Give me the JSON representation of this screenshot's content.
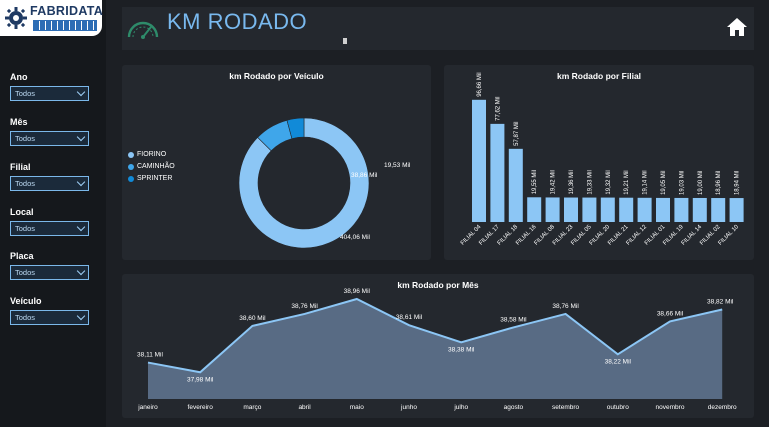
{
  "logo": {
    "text": "FABRIDATA"
  },
  "header": {
    "title": "KM RODADO"
  },
  "filters": [
    {
      "label": "Ano",
      "value": "Todos"
    },
    {
      "label": "Mês",
      "value": "Todos"
    },
    {
      "label": "Filial",
      "value": "Todos"
    },
    {
      "label": "Local",
      "value": "Todos"
    },
    {
      "label": "Placa",
      "value": "Todos"
    },
    {
      "label": "Veículo",
      "value": "Todos"
    }
  ],
  "colors": {
    "accent": "#79b9ef",
    "bar": "#8cc6f5",
    "area_fill": "#586b84",
    "area_line": "#8cc6f5"
  },
  "icons": {
    "gauge": "speedometer-icon",
    "home": "home-icon"
  },
  "chart_data": [
    {
      "type": "pie",
      "title": "km Rodado por Veículo",
      "slices": [
        {
          "name": "FIORINO",
          "value": 404.06,
          "label": "404,06 Mil",
          "color": "#8cc6f5"
        },
        {
          "name": "CAMINHÃO",
          "value": 38.86,
          "label": "38,86 Mil",
          "color": "#3fa6ea"
        },
        {
          "name": "SPRINTER",
          "value": 19.53,
          "label": "19,53 Mil",
          "color": "#118ad8"
        }
      ]
    },
    {
      "type": "bar",
      "title": "km Rodado por Filial",
      "categories": [
        "FILIAL 04",
        "FILIAL 17",
        "FILIAL 18",
        "FILIAL 16",
        "FILIAL 08",
        "FILIAL 23",
        "FILIAL 05",
        "FILIAL 20",
        "FILIAL 21",
        "FILIAL 12",
        "FILIAL 01",
        "FILIAL 19",
        "FILIAL 14",
        "FILIAL 02",
        "FILIAL 10"
      ],
      "values": [
        96.66,
        77.62,
        57.87,
        19.55,
        19.42,
        19.36,
        19.33,
        19.32,
        19.21,
        19.14,
        19.05,
        19.03,
        19.0,
        18.96,
        18.94
      ],
      "labels": [
        "96,66 Mil",
        "77,62 Mil",
        "57,87 Mil",
        "19,55 Mil",
        "19,42 Mil",
        "19,36 Mil",
        "19,33 Mil",
        "19,32 Mil",
        "19,21 Mil",
        "19,14 Mil",
        "19,05 Mil",
        "19,03 Mil",
        "19,00 Mil",
        "18,96 Mil",
        "18,94 Mil"
      ]
    },
    {
      "type": "area",
      "title": "km Rodado por Mês",
      "categories": [
        "janeiro",
        "fevereiro",
        "março",
        "abril",
        "maio",
        "junho",
        "julho",
        "agosto",
        "setembro",
        "outubro",
        "novembro",
        "dezembro"
      ],
      "values": [
        38.11,
        37.98,
        38.6,
        38.76,
        38.96,
        38.61,
        38.38,
        38.58,
        38.76,
        38.22,
        38.66,
        38.82
      ],
      "labels": [
        "38,11 Mil",
        "37,98 Mil",
        "38,60 Mil",
        "38,76 Mil",
        "38,96 Mil",
        "38,61 Mil",
        "38,38 Mil",
        "38,58 Mil",
        "38,76 Mil",
        "38,22 Mil",
        "38,66 Mil",
        "38,82 Mil"
      ]
    }
  ]
}
